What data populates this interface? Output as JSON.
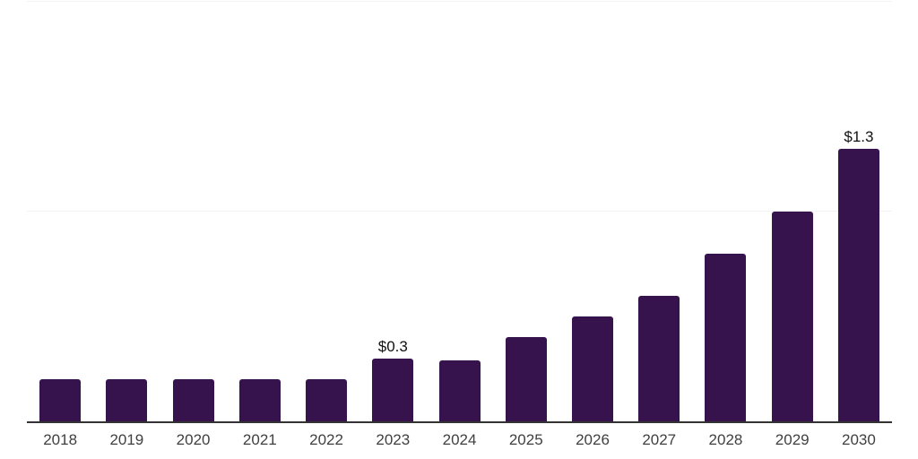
{
  "chart_data": {
    "type": "bar",
    "title": "",
    "xlabel": "",
    "ylabel": "",
    "categories": [
      "2018",
      "2019",
      "2020",
      "2021",
      "2022",
      "2023",
      "2024",
      "2025",
      "2026",
      "2027",
      "2028",
      "2029",
      "2030"
    ],
    "values": [
      0.2,
      0.2,
      0.2,
      0.2,
      0.2,
      0.3,
      0.29,
      0.4,
      0.5,
      0.6,
      0.8,
      1.0,
      1.3
    ],
    "bar_labels": [
      "",
      "",
      "",
      "",
      "",
      "$0.3",
      "",
      "",
      "",
      "",
      "",
      "",
      "$1.3"
    ],
    "ylim": [
      0,
      2.0
    ],
    "gridlines_y": [
      1.0,
      2.0
    ],
    "y_axis_labels_visible": false,
    "grid": "horizontal",
    "legend": "none",
    "colors": {
      "bar": "#37134E",
      "axis_line": "#333333",
      "gridline": "#f3f3f3",
      "tick_label": "#404040",
      "bar_label": "#111111",
      "background": "#ffffff"
    }
  }
}
